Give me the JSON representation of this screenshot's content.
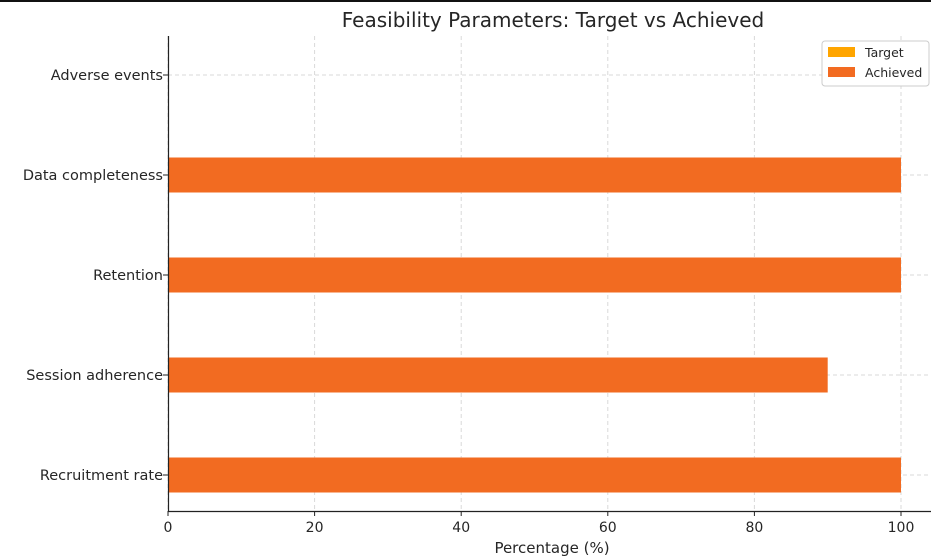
{
  "chart_data": {
    "type": "bar",
    "orientation": "horizontal",
    "title": "Feasibility Parameters: Target vs Achieved",
    "xlabel": "Percentage (%)",
    "ylabel": "",
    "xlim": [
      0,
      100
    ],
    "xticks": [
      0,
      20,
      40,
      60,
      80,
      100
    ],
    "categories": [
      "Recruitment rate",
      "Session adherence",
      "Retention",
      "Data completeness",
      "Adverse events"
    ],
    "series": [
      {
        "name": "Target",
        "color": "#FFA500",
        "values": [
          null,
          null,
          null,
          null,
          null
        ]
      },
      {
        "name": "Achieved",
        "color": "#F26B21",
        "values": [
          100,
          90,
          100,
          100,
          0
        ]
      }
    ],
    "grid": true,
    "legend_position": "top-right"
  }
}
